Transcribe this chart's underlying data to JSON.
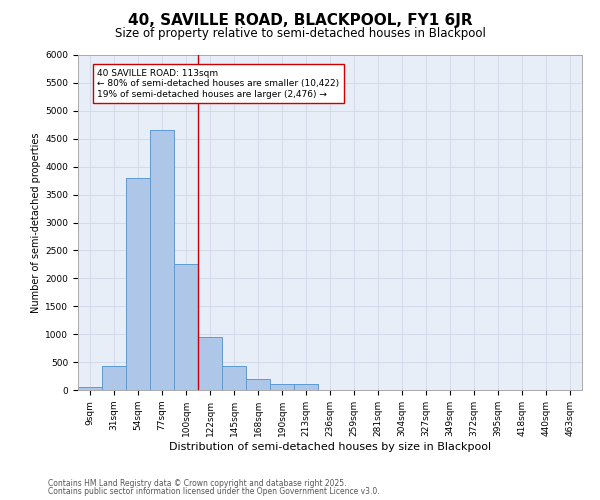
{
  "title1": "40, SAVILLE ROAD, BLACKPOOL, FY1 6JR",
  "title2": "Size of property relative to semi-detached houses in Blackpool",
  "xlabel": "Distribution of semi-detached houses by size in Blackpool",
  "ylabel": "Number of semi-detached properties",
  "categories": [
    "9sqm",
    "31sqm",
    "54sqm",
    "77sqm",
    "100sqm",
    "122sqm",
    "145sqm",
    "168sqm",
    "190sqm",
    "213sqm",
    "236sqm",
    "259sqm",
    "281sqm",
    "304sqm",
    "327sqm",
    "349sqm",
    "372sqm",
    "395sqm",
    "418sqm",
    "440sqm",
    "463sqm"
  ],
  "values": [
    50,
    430,
    3800,
    4650,
    2250,
    950,
    430,
    200,
    100,
    100,
    0,
    0,
    0,
    0,
    0,
    0,
    0,
    0,
    0,
    0,
    0
  ],
  "bar_color": "#aec6e8",
  "bar_edge_color": "#5b9bd5",
  "vline_color": "#cc0000",
  "annotation_text": "40 SAVILLE ROAD: 113sqm\n← 80% of semi-detached houses are smaller (10,422)\n19% of semi-detached houses are larger (2,476) →",
  "annotation_box_color": "#ffffff",
  "annotation_box_edge_color": "#cc0000",
  "ylim": [
    0,
    6000
  ],
  "yticks": [
    0,
    500,
    1000,
    1500,
    2000,
    2500,
    3000,
    3500,
    4000,
    4500,
    5000,
    5500,
    6000
  ],
  "grid_color": "#d0d8e8",
  "bg_color": "#e8eef8",
  "footer1": "Contains HM Land Registry data © Crown copyright and database right 2025.",
  "footer2": "Contains public sector information licensed under the Open Government Licence v3.0.",
  "title1_fontsize": 11,
  "title2_fontsize": 8.5,
  "xlabel_fontsize": 8,
  "ylabel_fontsize": 7,
  "tick_fontsize": 6.5,
  "annot_fontsize": 6.5,
  "footer_fontsize": 5.5
}
